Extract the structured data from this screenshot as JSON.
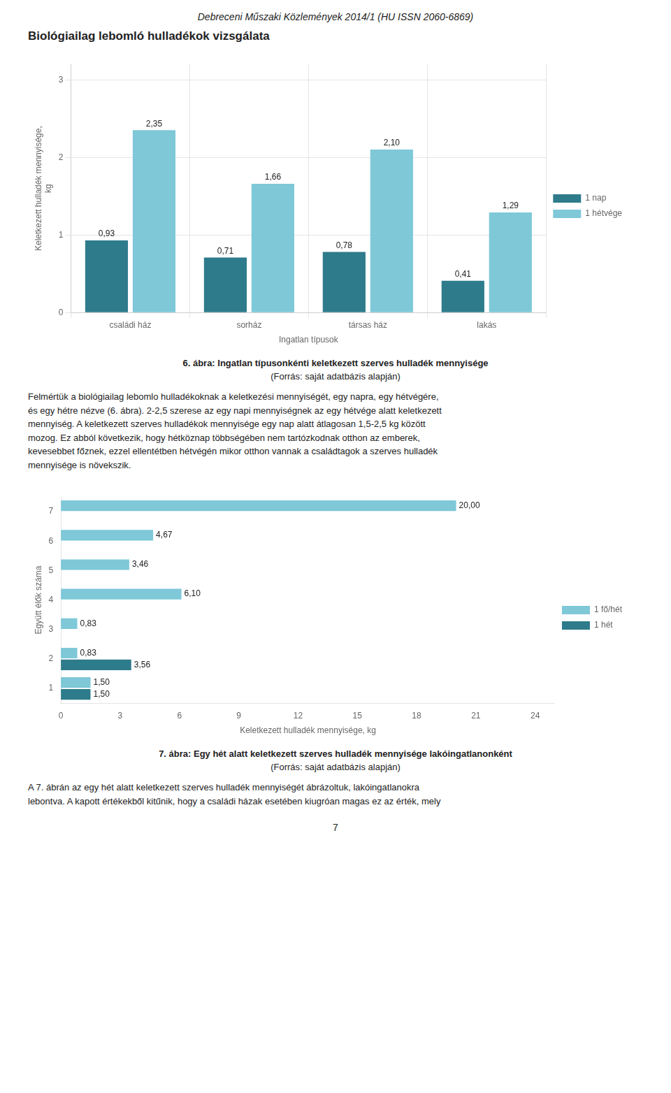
{
  "title": "Biológiailag lebomló hulladékok vizsgálata",
  "annotations": [
    "Debreceni Műszaki Közlemények 2014/1 (HU ISSN 2060-6869)",
    "7"
  ],
  "chart_data": [
    {
      "type": "bar",
      "title": "6. ábra: Ingatlan típusonkénti keletkezett szerves hulladék mennyisége",
      "subtitle": "(Forrás: saját adatbázis alapján)",
      "annotations": [
        "Felmértük a biológiailag lebomlo hulladékoknak a keletkezési mennyiségét, egy napra, egy hétvégére,\nés egy hétre nézve (6. ábra). 2-2,5 szerese az egy napi mennyiségnek az egy hétvége alatt keletkezett\nmennyiség. A keletkezett szerves hulladékok mennyisége egy nap alatt átlagosan 1,5-2,5 kg között\nmozog. Ez abból következik, hogy hétköznap többségében nem tartózkodnak otthon az emberek,\nkevesebbet főznek, ezzel ellentétben hétvégén mikor otthon vannak a családtagok a szerves hulladék\nmennyisége is növekszik."
      ],
      "xlabel": "Ingatlan típusok",
      "ylabel": "Keletkezett hulladék mennyisége,\nkg",
      "categories": [
        "családi ház",
        "sorház",
        "társas ház",
        "lakás"
      ],
      "series": [
        {
          "name": "1 nap",
          "color": "#2e7b8c",
          "values": [
            0.93,
            0.71,
            0.78,
            0.41
          ],
          "value_labels": [
            "0,93",
            "0,71",
            "0,78",
            "0,41"
          ]
        },
        {
          "name": "1 hétvége",
          "color": "#7ec8d8",
          "values": [
            2.35,
            1.66,
            2.1,
            1.29
          ],
          "value_labels": [
            "2,35",
            "1,66",
            "2,10",
            "1,29"
          ]
        }
      ],
      "ylim": [
        0,
        3.2
      ],
      "yticks": [
        0,
        1,
        2,
        3
      ],
      "grid": true,
      "legend": "right",
      "data_labels": true
    },
    {
      "type": "bar",
      "orientation": "horizontal",
      "title": "7. ábra: Egy hét alatt keletkezett szerves hulladék mennyisége lakóingatlanonként",
      "subtitle": "(Forrás: saját adatbázis alapján)",
      "annotations": [
        "A 7. ábrán az egy hét alatt keletkezett szerves hulladék mennyiségét ábrázoltuk, lakóingatlanokra\nlebontva. A kapott értékekből kitűnik, hogy a családi házak esetében kiugróan magas ez az érték, mely"
      ],
      "xlabel": "Keletkezett hulladék mennyisége, kg",
      "ylabel": "Együtt élők száma",
      "categories": [
        1,
        2,
        3,
        4,
        5,
        6,
        7
      ],
      "series": [
        {
          "name": "1 fő/hét",
          "color": "#7ec8d8",
          "values": [
            1.5,
            0.83,
            0.83,
            6.1,
            3.46,
            4.67,
            20.0
          ],
          "value_labels": [
            "1,50",
            "0,83",
            "0,83",
            "6,10",
            "3,46",
            "4,67",
            "20,00"
          ]
        },
        {
          "name": "1 hét",
          "color": "#2e7b8c",
          "values": [
            1.5,
            3.56,
            null,
            null,
            null,
            null,
            null
          ],
          "value_labels": [
            "1,50",
            "3,56",
            null,
            null,
            null,
            null,
            null
          ]
        }
      ],
      "xlim": [
        0,
        25
      ],
      "xticks": [
        0,
        3,
        6,
        9,
        12,
        15,
        18,
        21,
        24
      ],
      "grid": false,
      "legend": "right",
      "data_labels": true
    }
  ]
}
